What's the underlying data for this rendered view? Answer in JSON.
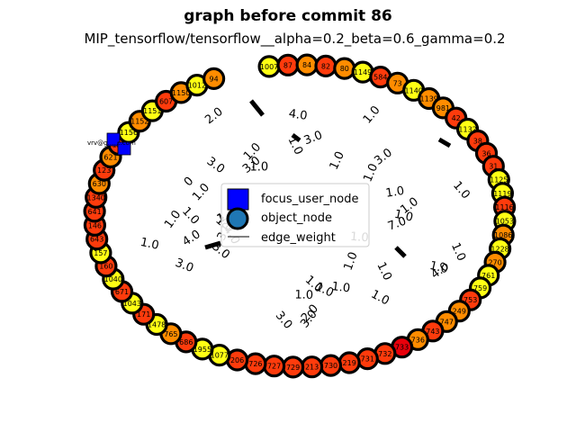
{
  "figure": {
    "title": "graph before commit 86",
    "subtitle": "MIP_tensorflow/tensorflow__alpha=0.2_beta=0.6_gamma=0.2"
  },
  "colors": {
    "yellow": "#ffff14",
    "orange": "#ff8c00",
    "red": "#fe3b0c",
    "deep_red": "#e8000b",
    "focus": "#0000ff",
    "legend_object": "#1f77b4"
  },
  "legend": {
    "focus_label": "focus_user_node",
    "object_label": "object_node",
    "edge_label": "edge_weight"
  },
  "focus_user": {
    "label": "vrv@g…….com"
  },
  "nodes": [
    {
      "label": "1007",
      "color": "yellow"
    },
    {
      "label": "87",
      "color": "red"
    },
    {
      "label": "84",
      "color": "orange"
    },
    {
      "label": "82",
      "color": "red"
    },
    {
      "label": "80",
      "color": "orange"
    },
    {
      "label": "1149",
      "color": "yellow"
    },
    {
      "label": "584",
      "color": "red"
    },
    {
      "label": "73",
      "color": "orange"
    },
    {
      "label": "1140",
      "color": "yellow"
    },
    {
      "label": "1139",
      "color": "orange"
    },
    {
      "label": "981",
      "color": "orange"
    },
    {
      "label": "42",
      "color": "red"
    },
    {
      "label": "1132",
      "color": "yellow"
    },
    {
      "label": "38",
      "color": "red"
    },
    {
      "label": "36",
      "color": "red"
    },
    {
      "label": "31",
      "color": "red"
    },
    {
      "label": "1125",
      "color": "yellow"
    },
    {
      "label": "1119",
      "color": "yellow"
    },
    {
      "label": "1116",
      "color": "red"
    },
    {
      "label": "1053",
      "color": "yellow"
    },
    {
      "label": "1086",
      "color": "orange"
    },
    {
      "label": "1228",
      "color": "yellow"
    },
    {
      "label": "270",
      "color": "orange"
    },
    {
      "label": "761",
      "color": "yellow"
    },
    {
      "label": "759",
      "color": "yellow"
    },
    {
      "label": "753",
      "color": "red"
    },
    {
      "label": "249",
      "color": "orange"
    },
    {
      "label": "747",
      "color": "orange"
    },
    {
      "label": "743",
      "color": "red"
    },
    {
      "label": "736",
      "color": "orange"
    },
    {
      "label": "733",
      "color": "deep_red"
    },
    {
      "label": "732",
      "color": "red"
    },
    {
      "label": "731",
      "color": "red"
    },
    {
      "label": "219",
      "color": "red"
    },
    {
      "label": "730",
      "color": "red"
    },
    {
      "label": "213",
      "color": "red"
    },
    {
      "label": "729",
      "color": "red"
    },
    {
      "label": "727",
      "color": "red"
    },
    {
      "label": "726",
      "color": "red"
    },
    {
      "label": "206",
      "color": "red"
    },
    {
      "label": "1077",
      "color": "yellow"
    },
    {
      "label": "1955",
      "color": "yellow"
    },
    {
      "label": "686",
      "color": "red"
    },
    {
      "label": "765",
      "color": "orange"
    },
    {
      "label": "1478",
      "color": "yellow"
    },
    {
      "label": "171",
      "color": "red"
    },
    {
      "label": "1043",
      "color": "yellow"
    },
    {
      "label": "671",
      "color": "red"
    },
    {
      "label": "1040",
      "color": "yellow"
    },
    {
      "label": "160",
      "color": "red"
    },
    {
      "label": "157",
      "color": "yellow"
    },
    {
      "label": "643",
      "color": "red"
    },
    {
      "label": "146",
      "color": "red"
    },
    {
      "label": "641",
      "color": "red"
    },
    {
      "label": "1340",
      "color": "red"
    },
    {
      "label": "630",
      "color": "orange"
    },
    {
      "label": "123",
      "color": "red"
    },
    {
      "label": "621",
      "color": "orange"
    },
    {
      "label": "120",
      "color": "red"
    },
    {
      "label": "1156",
      "color": "yellow"
    },
    {
      "label": "1152",
      "color": "orange"
    },
    {
      "label": "1151",
      "color": "yellow"
    },
    {
      "label": "607",
      "color": "red"
    },
    {
      "label": "1150",
      "color": "orange"
    },
    {
      "label": "1012",
      "color": "yellow"
    },
    {
      "label": "94",
      "color": "orange"
    }
  ],
  "edge_weight_labels": [
    "1.0",
    "1.0",
    "1.0",
    "3.0",
    "1.0",
    "2.0",
    "0",
    "1.0",
    "1.0",
    "1.0",
    "1.0",
    "1.0",
    "1.0",
    "3.0",
    "4.0",
    "3.0",
    "3.0",
    "3.0",
    "3.0",
    "3.0",
    "1.0",
    "1.0",
    "4.0",
    "3.0",
    "3.0",
    "1.0",
    "4.0",
    "7.0",
    "1.0",
    "1.0",
    "1.0",
    "1.0",
    "1.0",
    "1.0",
    "1.0",
    "1.0",
    "2.0",
    "1.0",
    "1.0",
    "1.0",
    "1.0",
    "1.0",
    "1.0",
    "1.0"
  ]
}
